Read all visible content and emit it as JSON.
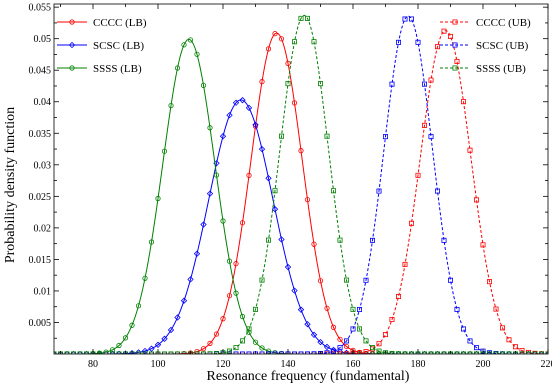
{
  "chart_data": {
    "type": "line",
    "title": "",
    "xlabel": "Resonance  frequency (fundamental)",
    "ylabel": "Probability density function",
    "xlim": [
      68,
      220
    ],
    "ylim": [
      0,
      0.0555
    ],
    "x_ticks": [
      80,
      100,
      120,
      140,
      160,
      180,
      200,
      220
    ],
    "y_ticks": [
      0.005,
      0.01,
      0.015,
      0.02,
      0.025,
      0.03,
      0.035,
      0.04,
      0.045,
      0.05,
      0.055
    ],
    "grid": false,
    "legends": [
      {
        "position": "top-left",
        "entries": [
          "CCCC (LB)",
          "SCSC (LB)",
          "SSSS (LB)"
        ]
      },
      {
        "position": "top-right",
        "entries": [
          "CCCC (UB)",
          "SCSC (UB)",
          "SSSS (UB)"
        ]
      }
    ],
    "series": [
      {
        "name": "CCCC (LB)",
        "color": "#ff0000",
        "linestyle": "solid",
        "marker": "circle",
        "mean": 136.5,
        "std": 7.85,
        "peak": 0.0509
      },
      {
        "name": "SCSC (LB)",
        "color": "#0000ff",
        "linestyle": "solid",
        "marker": "diamond",
        "mean": 125.5,
        "std": 9.9,
        "peak": 0.0403
      },
      {
        "name": "SSSS (LB)",
        "color": "#008000",
        "linestyle": "solid",
        "marker": "circle",
        "mean": 109.5,
        "std": 8.0,
        "peak": 0.0499
      },
      {
        "name": "CCCC (UB)",
        "color": "#ff0000",
        "linestyle": "dashed",
        "marker": "square",
        "mean": 188.5,
        "std": 7.8,
        "peak": 0.0513
      },
      {
        "name": "SCSC (UB)",
        "color": "#0000ff",
        "linestyle": "dashed",
        "marker": "square",
        "mean": 177.0,
        "std": 7.45,
        "peak": 0.0536
      },
      {
        "name": "SSSS (UB)",
        "color": "#008000",
        "linestyle": "dashed",
        "marker": "square",
        "mean": 145.0,
        "std": 7.45,
        "peak": 0.0537
      }
    ],
    "sampling": {
      "x_start": 68,
      "x_end": 220,
      "x_step": 2
    }
  }
}
